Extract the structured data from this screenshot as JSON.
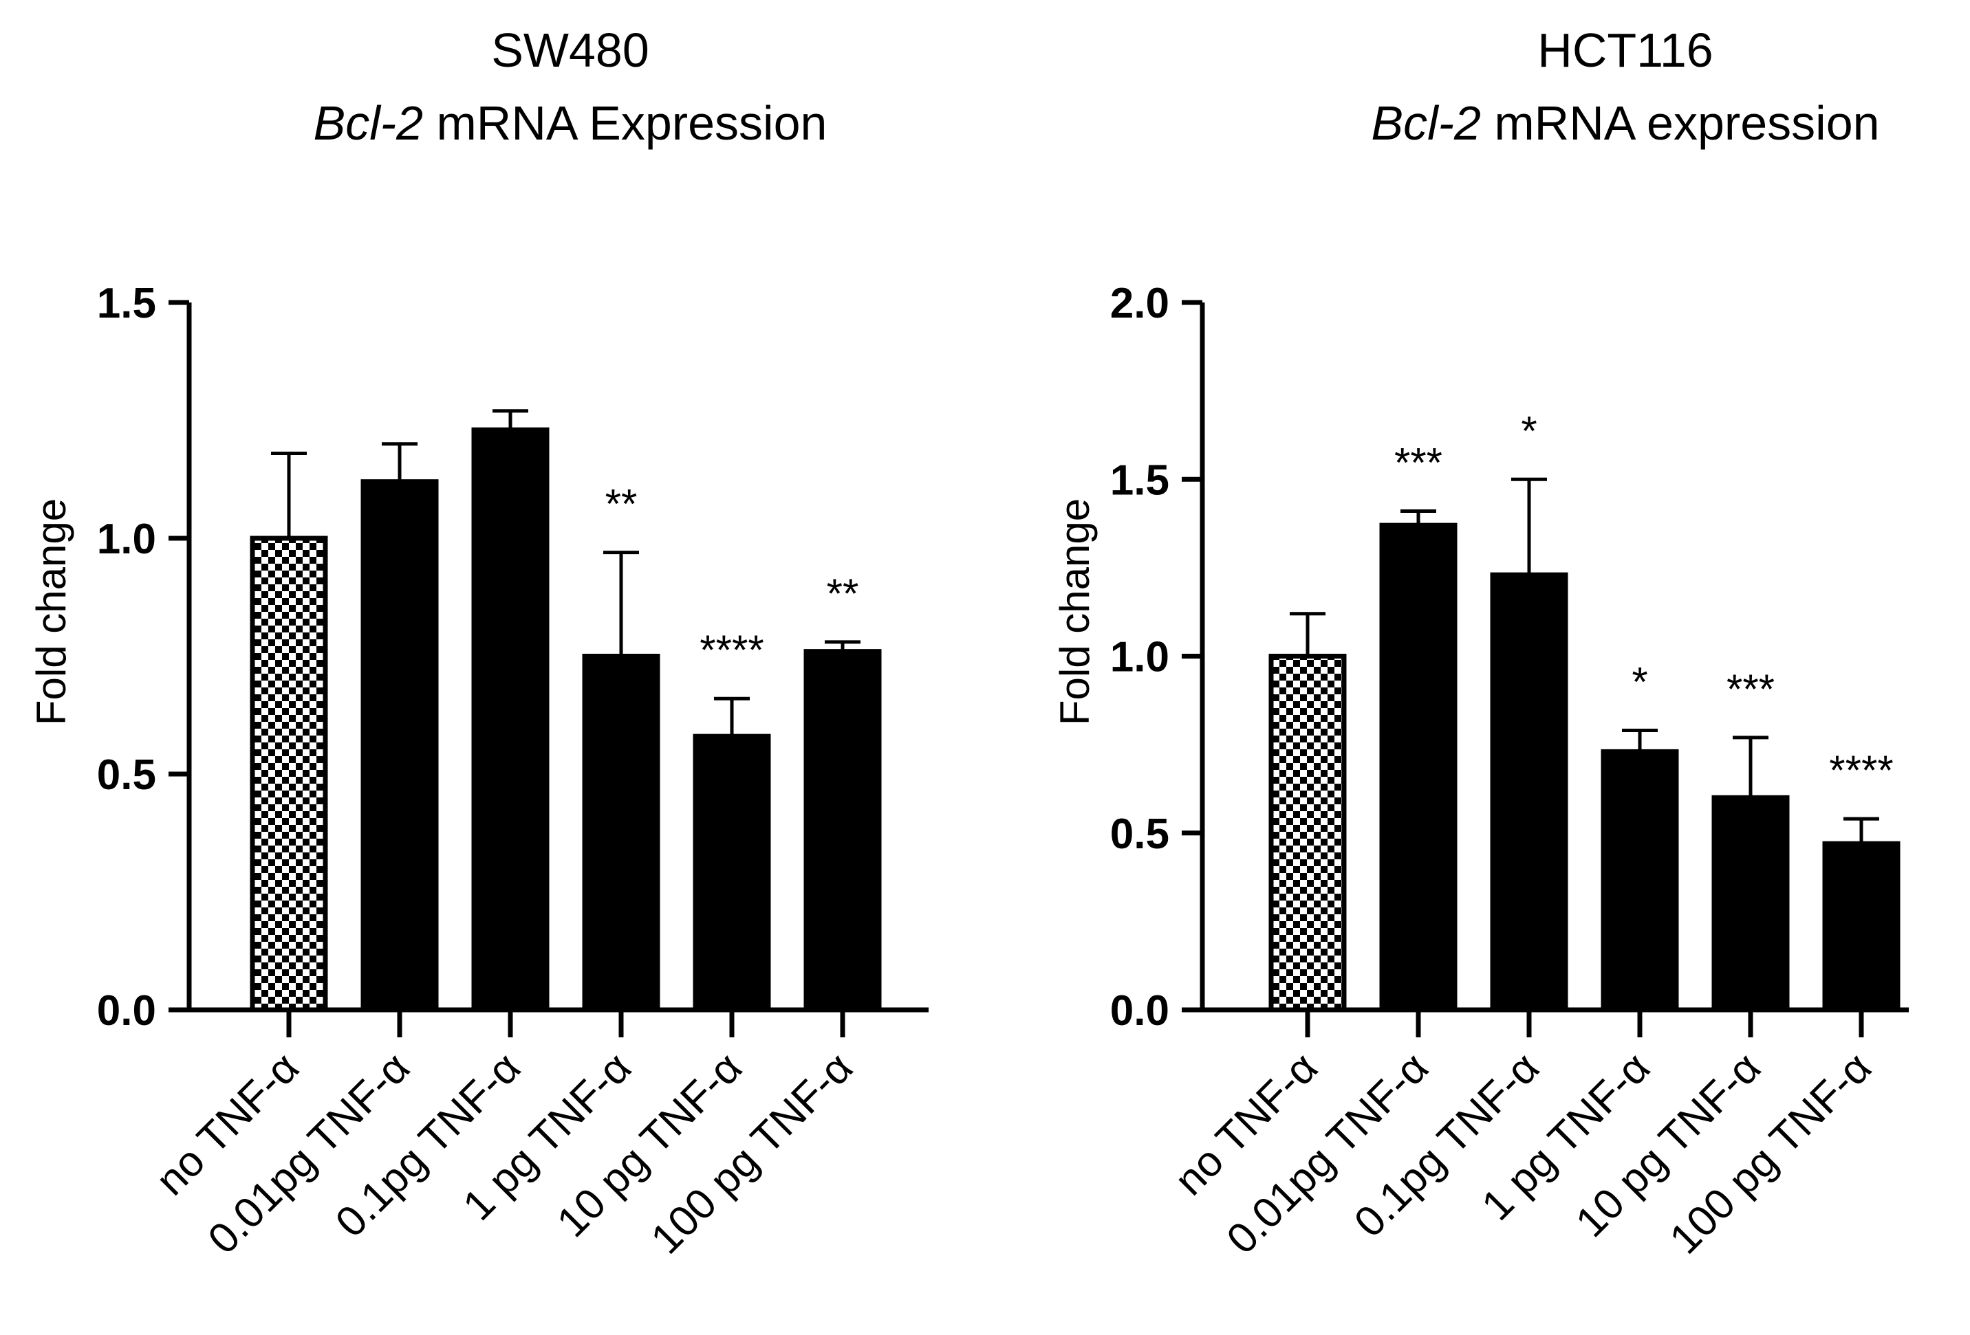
{
  "chart_data": [
    {
      "type": "bar",
      "title_line1": "SW480",
      "title_gene": "Bcl-2",
      "title_rest": " mRNA Expression",
      "xlabel": "",
      "ylabel": "Fold change",
      "ylim": [
        0,
        1.5
      ],
      "yticks": [
        0.0,
        0.5,
        1.0,
        1.5
      ],
      "ytick_labels": [
        "0.0",
        "0.5",
        "1.0",
        "1.5"
      ],
      "categories": [
        "no TNF-α",
        "0.01pg TNF-α",
        "0.1pg TNF-α",
        "1 pg TNF-α",
        "10 pg TNF-α",
        "100 pg TNF-α"
      ],
      "values": [
        1.0,
        1.12,
        1.23,
        0.75,
        0.58,
        0.76
      ],
      "errors": [
        0.18,
        0.08,
        0.04,
        0.22,
        0.08,
        0.02
      ],
      "significance": [
        "",
        "",
        "",
        "**",
        "****",
        "**"
      ],
      "patterns": [
        "checker",
        "solid",
        "solid",
        "solid",
        "solid",
        "solid"
      ],
      "colors": {
        "bar": "#000000",
        "checker_light": "#ffffff"
      },
      "grid": false
    },
    {
      "type": "bar",
      "title_line1": "HCT116",
      "title_gene": "Bcl-2",
      "title_rest": " mRNA expression",
      "xlabel": "",
      "ylabel": "Fold change",
      "ylim": [
        0,
        2.0
      ],
      "yticks": [
        0.0,
        0.5,
        1.0,
        1.5,
        2.0
      ],
      "ytick_labels": [
        "0.0",
        "0.5",
        "1.0",
        "1.5",
        "2.0"
      ],
      "categories": [
        "no TNF-α",
        "0.01pg TNF-α",
        "0.1pg TNF-α",
        "1 pg TNF-α",
        "10 pg TNF-α",
        "100 pg TNF-α"
      ],
      "values": [
        1.0,
        1.37,
        1.23,
        0.73,
        0.6,
        0.47
      ],
      "errors": [
        0.12,
        0.04,
        0.27,
        0.06,
        0.17,
        0.07
      ],
      "significance": [
        "",
        "***",
        "*",
        "*",
        "***",
        "****"
      ],
      "patterns": [
        "checker",
        "solid",
        "solid",
        "solid",
        "solid",
        "solid"
      ],
      "colors": {
        "bar": "#000000",
        "checker_light": "#ffffff"
      },
      "grid": false
    }
  ]
}
